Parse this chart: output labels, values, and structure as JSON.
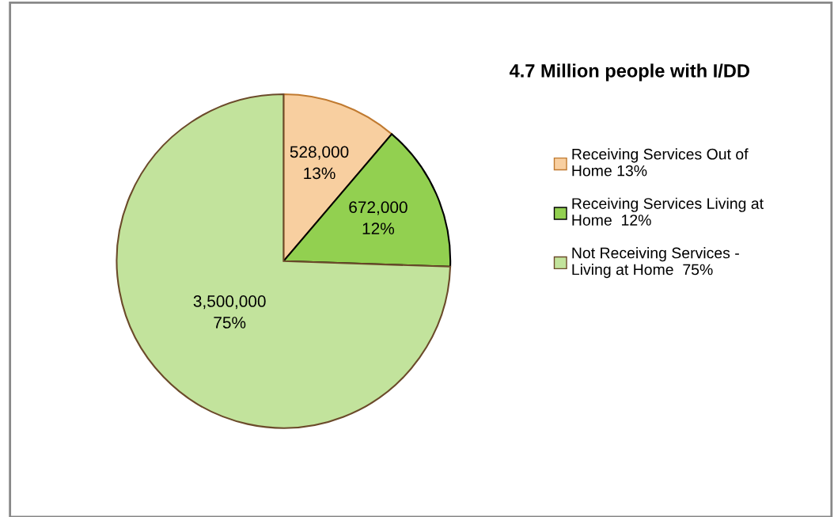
{
  "chart_data": {
    "type": "pie",
    "title": "4.7 Million people with I/DD",
    "categories": [
      "Receiving Services Out of Home 13%",
      "Receiving Services Living at Home  12%",
      "Not Receiving Services - Living at Home  75%"
    ],
    "values": [
      528000,
      672000,
      3500000
    ],
    "value_labels": [
      "528,000\n13%",
      "672,000\n12%",
      "3,500,000\n75%"
    ],
    "colors": [
      "#f8cfa0",
      "#92d050",
      "#c2e39c"
    ],
    "legend": "right"
  }
}
